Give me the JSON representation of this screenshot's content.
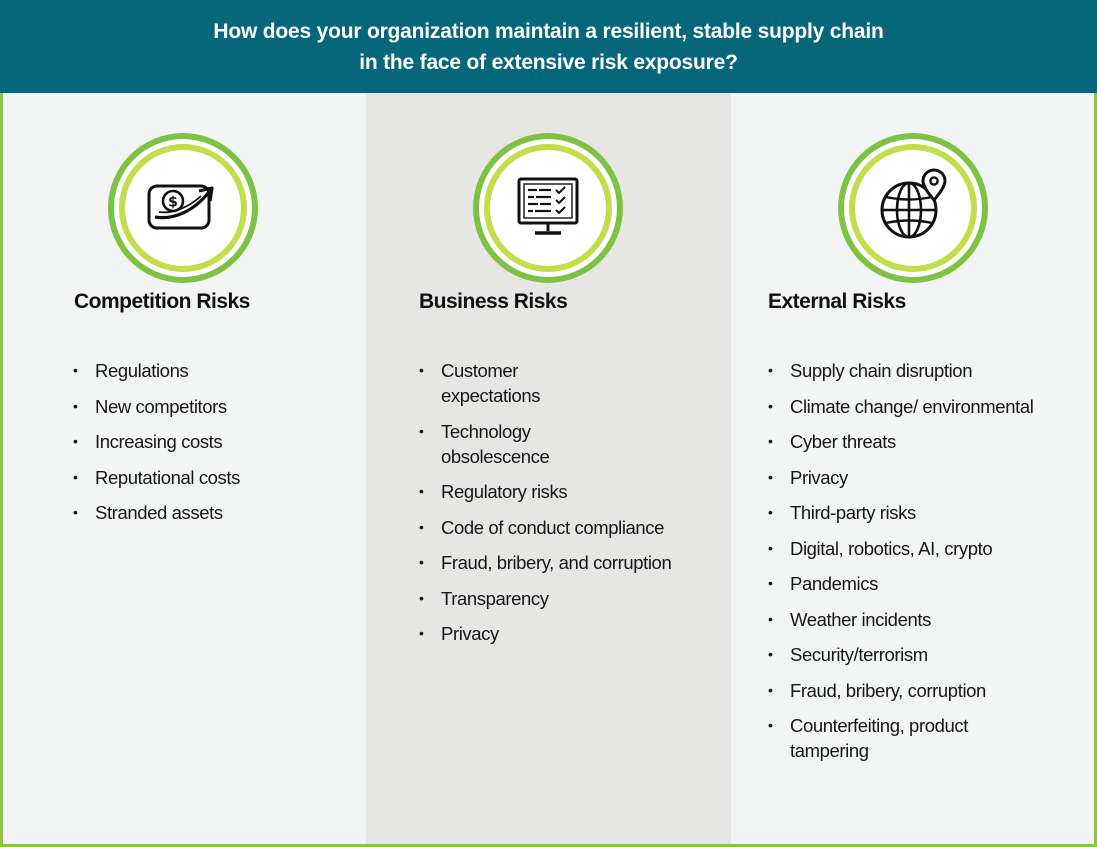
{
  "header": {
    "title_line1": "How does your organization maintain a resilient, stable supply chain",
    "title_line2": "in the face of extensive risk exposure?"
  },
  "columns": [
    {
      "icon": "money-growth-icon",
      "title": "Competition Risks",
      "items": [
        "Regulations",
        "New competitors",
        "Increasing costs",
        "Reputational costs",
        "Stranded assets"
      ]
    },
    {
      "icon": "monitor-checklist-icon",
      "title": "Business Risks",
      "items": [
        "Customer expectations",
        "Technology obsolescence",
        "Regulatory risks",
        "Code of conduct compliance",
        "Fraud, bribery, and corruption",
        "Transparency",
        "Privacy"
      ]
    },
    {
      "icon": "globe-location-icon",
      "title": "External Risks",
      "items": [
        "Supply chain disruption",
        "Climate change/ environmental",
        "Cyber threats",
        "Privacy",
        "Third-party risks",
        "Digital, robotics, AI, crypto",
        "Pandemics",
        "Weather incidents",
        "Security/terrorism",
        "Fraud, bribery,  corruption",
        "Counterfeiting,  product tampering"
      ]
    }
  ],
  "colors": {
    "header_bg": "#07677a",
    "accent_green": "#7dc242",
    "accent_lime": "#c4dd4b",
    "border": "#8cc63f",
    "column_light": "#f3f4f4",
    "column_mid": "#e6e6e5"
  }
}
